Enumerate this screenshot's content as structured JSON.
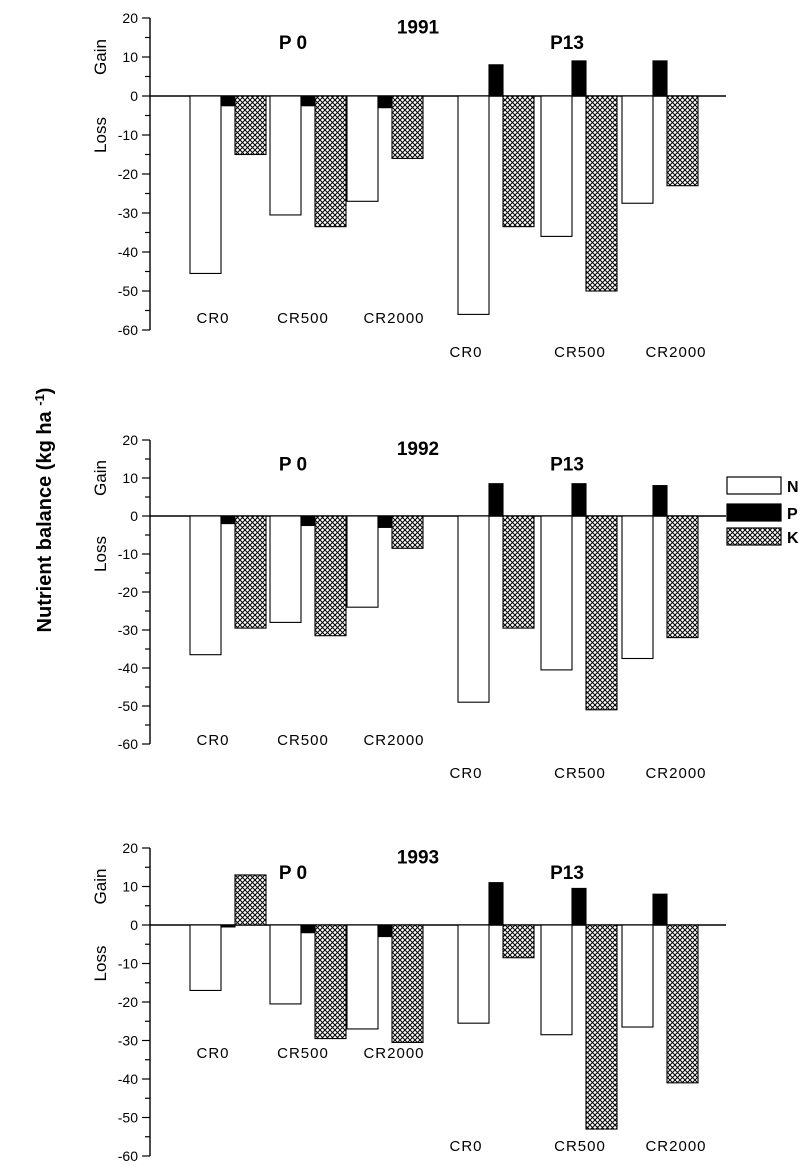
{
  "ylabel": "Nutrient balance (kg ha ",
  "ylabel_sup": "-1",
  "ylabel_close": ")",
  "gain_label": "Gain",
  "loss_label": "Loss",
  "legend": [
    {
      "key": "N",
      "label": "N"
    },
    {
      "key": "P",
      "label": "P"
    },
    {
      "key": "K",
      "label": "K"
    }
  ],
  "colors": {
    "N": "#ffffff",
    "P": "#000000",
    "K": "crosshatch",
    "axis": "#000000"
  },
  "chart_data": [
    {
      "type": "bar",
      "year": "1991",
      "groups": [
        "P 0",
        "P13"
      ],
      "categories": [
        "CR0",
        "CR500",
        "CR2000",
        "CR0",
        "CR500",
        "CR2000"
      ],
      "yticks": [
        "20",
        "10",
        "0",
        "-10",
        "-20",
        "-30",
        "-40",
        "-50",
        "-60"
      ],
      "ylim": [
        -60,
        20
      ],
      "series": [
        {
          "name": "N",
          "values": [
            -45.5,
            -30.5,
            -27,
            -56,
            -36,
            -27.5
          ]
        },
        {
          "name": "P",
          "values": [
            -2.5,
            -2.5,
            -3,
            8,
            9,
            9
          ]
        },
        {
          "name": "K",
          "values": [
            -15,
            -33.5,
            -16,
            -33.5,
            -50,
            -23
          ]
        }
      ]
    },
    {
      "type": "bar",
      "year": "1992",
      "groups": [
        "P 0",
        "P13"
      ],
      "categories": [
        "CR0",
        "CR500",
        "CR2000",
        "CR0",
        "CR500",
        "CR2000"
      ],
      "yticks": [
        "20",
        "10",
        "0",
        "-10",
        "-20",
        "-30",
        "-40",
        "-50",
        "-60"
      ],
      "ylim": [
        -60,
        20
      ],
      "series": [
        {
          "name": "N",
          "values": [
            -36.5,
            -28,
            -24,
            -49,
            -40.5,
            -37.5
          ]
        },
        {
          "name": "P",
          "values": [
            -2,
            -2.5,
            -3,
            8.5,
            8.5,
            8
          ]
        },
        {
          "name": "K",
          "values": [
            -29.5,
            -31.5,
            -8.5,
            -29.5,
            -51,
            -32
          ]
        }
      ]
    },
    {
      "type": "bar",
      "year": "1993",
      "groups": [
        "P 0",
        "P13"
      ],
      "categories": [
        "CR0",
        "CR500",
        "CR2000",
        "CR0",
        "CR500",
        "CR2000"
      ],
      "yticks": [
        "20",
        "10",
        "0",
        "-10",
        "-20",
        "-30",
        "-40",
        "-50",
        "-60"
      ],
      "ylim": [
        -60,
        20
      ],
      "series": [
        {
          "name": "N",
          "values": [
            -17,
            -20.5,
            -27,
            -25.5,
            -28.5,
            -26.5
          ]
        },
        {
          "name": "P",
          "values": [
            -0.5,
            -2,
            -3,
            11,
            9.5,
            8
          ]
        },
        {
          "name": "K",
          "values": [
            13,
            -29.5,
            -30.5,
            -8.5,
            -53,
            -41
          ]
        }
      ]
    }
  ]
}
